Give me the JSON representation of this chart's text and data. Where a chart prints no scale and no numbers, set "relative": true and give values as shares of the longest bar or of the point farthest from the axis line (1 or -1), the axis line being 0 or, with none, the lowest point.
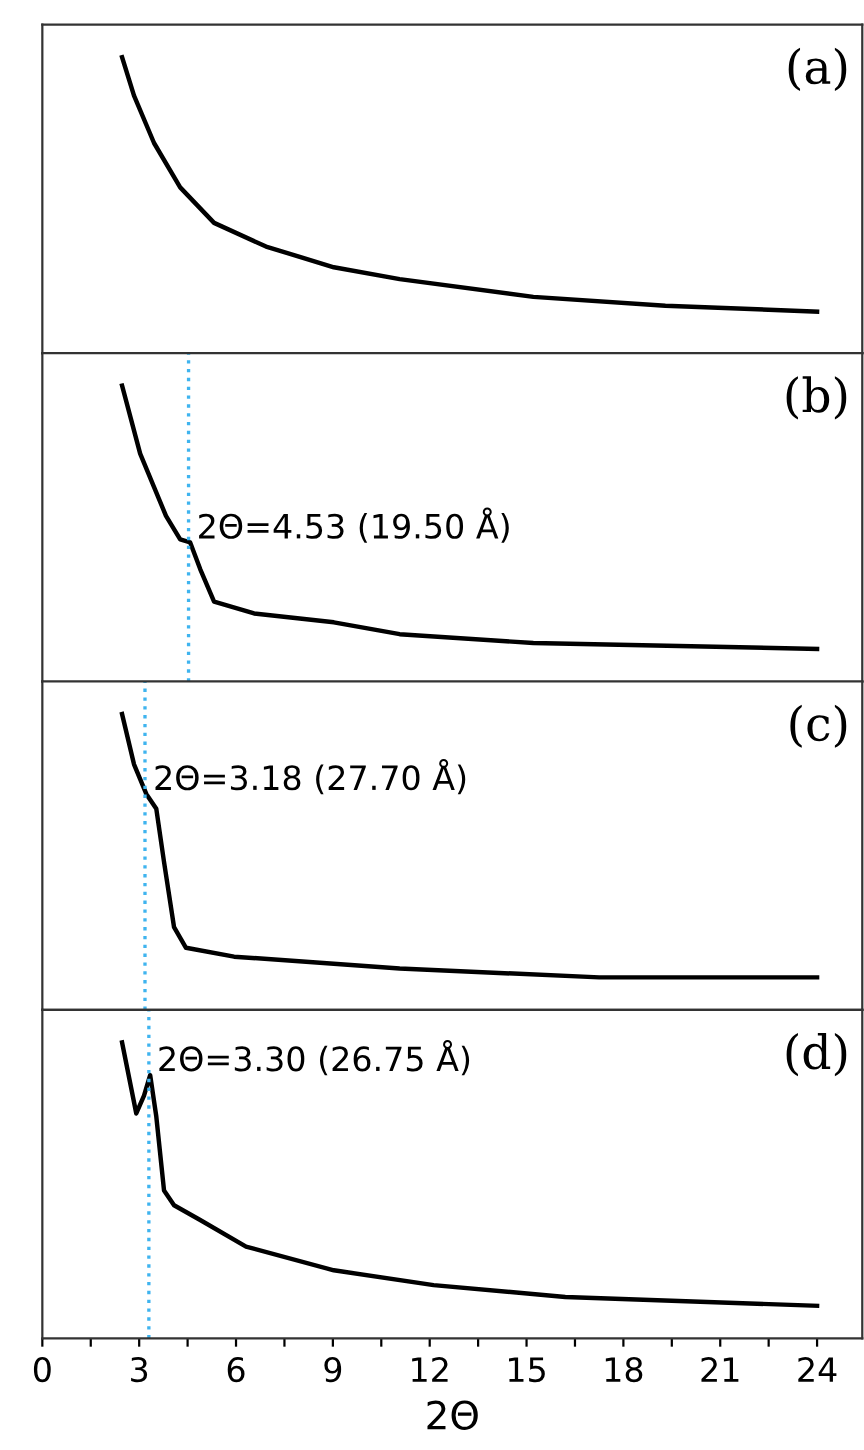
{
  "chart_data": [
    {
      "type": "line",
      "relative": true,
      "xlim": [
        0,
        25.4
      ],
      "tick_labels": false,
      "annotations": [
        "(a)"
      ],
      "series": [
        {
          "color": "#000000",
          "x": [
            2.47,
            2.84,
            3.46,
            4.27,
            5.32,
            6.93,
            9.03,
            11.07,
            15.21,
            19.3,
            24.0
          ],
          "values": [
            1,
            0.87,
            0.71,
            0.56,
            0.44,
            0.36,
            0.29,
            0.25,
            0.19,
            0.16,
            0.14
          ]
        }
      ]
    },
    {
      "type": "line",
      "relative": true,
      "xlim": [
        0,
        25.4
      ],
      "tick_labels": false,
      "annotations": [
        "(b)"
      ],
      "series": [
        {
          "color": "#000000",
          "x": [
            2.47,
            3.03,
            3.83,
            4.27,
            4.58,
            4.89,
            5.32,
            6.56,
            9.03,
            11.07,
            15.21,
            24.0
          ],
          "values": [
            1,
            0.77,
            0.56,
            0.48,
            0.47,
            0.38,
            0.27,
            0.23,
            0.2,
            0.16,
            0.13,
            0.11
          ]
        }
      ],
      "ref_lines": [
        {
          "axis": "x",
          "value": 4.53,
          "label": "2Θ=4.53 (19.50 Å)",
          "color": "#3fb4ef",
          "line_style": "dotted"
        }
      ]
    },
    {
      "type": "line",
      "relative": true,
      "xlim": [
        0,
        25.4
      ],
      "tick_labels": false,
      "annotations": [
        "(c)"
      ],
      "series": [
        {
          "color": "#000000",
          "x": [
            2.47,
            2.84,
            3.22,
            3.53,
            3.77,
            4.08,
            4.45,
            5.94,
            11.07,
            17.25,
            24.0
          ],
          "values": [
            1,
            0.83,
            0.73,
            0.68,
            0.5,
            0.28,
            0.21,
            0.18,
            0.14,
            0.11,
            0.11
          ]
        }
      ],
      "ref_lines": [
        {
          "axis": "x",
          "value": 3.18,
          "label": "2Θ=3.18 (27.70 Å)",
          "color": "#3fb4ef",
          "line_style": "dotted"
        }
      ]
    },
    {
      "type": "line",
      "relative": true,
      "xlim": [
        0,
        25.4
      ],
      "tick_labels": "x",
      "xlabel": "2Θ",
      "annotations": [
        "(d)"
      ],
      "xticks": [
        0,
        {
          "value": 1.5,
          "label": null
        },
        3,
        {
          "value": 4.5,
          "label": null
        },
        6,
        {
          "value": 7.5,
          "label": null
        },
        9,
        {
          "value": 10.5,
          "label": null
        },
        12,
        {
          "value": 13.5,
          "label": null
        },
        15,
        {
          "value": 16.5,
          "label": null
        },
        18,
        {
          "value": 19.5,
          "label": null
        },
        21,
        {
          "value": 22.5,
          "label": null
        },
        24
      ],
      "series": [
        {
          "color": "#000000",
          "x": [
            2.47,
            2.91,
            3.15,
            3.34,
            3.53,
            3.77,
            4.08,
            4.89,
            6.31,
            9.03,
            12.12,
            16.2,
            24.0
          ],
          "values": [
            1,
            0.76,
            0.82,
            0.89,
            0.75,
            0.5,
            0.45,
            0.4,
            0.31,
            0.23,
            0.18,
            0.14,
            0.11
          ]
        }
      ],
      "ref_lines": [
        {
          "axis": "x",
          "value": 3.3,
          "label": "2Θ=3.30 (26.75 Å)",
          "color": "#3fb4ef",
          "line_style": "dotted"
        }
      ]
    }
  ]
}
